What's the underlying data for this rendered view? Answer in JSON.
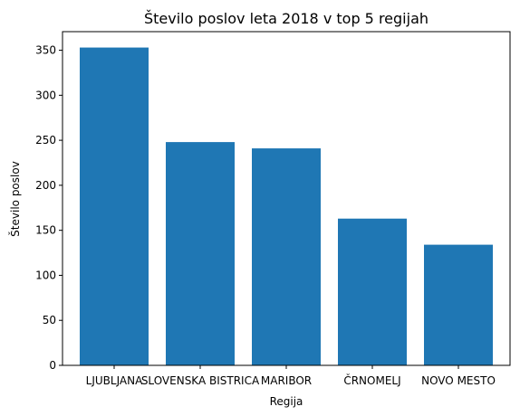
{
  "chart_data": {
    "type": "bar",
    "title": "Število poslov leta 2018 v top 5 regijah",
    "xlabel": "Regija",
    "ylabel": "Število poslov",
    "categories": [
      "LJUBLJANA",
      "SLOVENSKA BISTRICA",
      "MARIBOR",
      "ČRNOMELJ",
      "NOVO MESTO"
    ],
    "values": [
      353,
      248,
      241,
      163,
      134
    ],
    "ylim": [
      0,
      370.65
    ],
    "yticks": [
      0,
      50,
      100,
      150,
      200,
      250,
      300,
      350
    ],
    "grid": false,
    "bar_color": "#1f77b4"
  }
}
